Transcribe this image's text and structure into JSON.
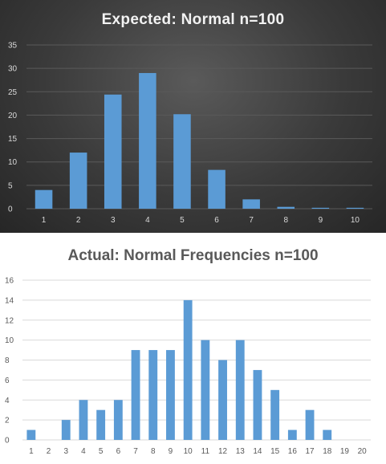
{
  "chart_data": [
    {
      "type": "bar",
      "title": "Expected:  Normal  n=100",
      "categories": [
        "1",
        "2",
        "3",
        "4",
        "5",
        "6",
        "7",
        "8",
        "9",
        "10"
      ],
      "values": [
        4,
        12,
        24.4,
        29,
        20.2,
        8.3,
        2,
        0.4,
        0.2,
        0.2
      ],
      "ylim": [
        0,
        35
      ],
      "yticks": [
        "0",
        "5",
        "10",
        "15",
        "20",
        "25",
        "30",
        "35"
      ],
      "grid": true,
      "colors": {
        "bar": "#5b9bd5",
        "background": "#3a3a3a",
        "text": "#f2f2f2"
      }
    },
    {
      "type": "bar",
      "title": "Actual: Normal Frequencies n=100",
      "categories": [
        "1",
        "2",
        "3",
        "4",
        "5",
        "6",
        "7",
        "8",
        "9",
        "10",
        "11",
        "12",
        "13",
        "14",
        "15",
        "16",
        "17",
        "18",
        "19",
        "20"
      ],
      "values": [
        1,
        0,
        2,
        4,
        3,
        4,
        9,
        9,
        9,
        14,
        10,
        8,
        10,
        7,
        5,
        1,
        3,
        1,
        0,
        0
      ],
      "ylim": [
        0,
        16
      ],
      "yticks": [
        "0",
        "2",
        "4",
        "6",
        "8",
        "10",
        "12",
        "14",
        "16"
      ],
      "grid": true,
      "colors": {
        "bar": "#5b9bd5",
        "background": "#ffffff",
        "text": "#595959"
      }
    }
  ]
}
